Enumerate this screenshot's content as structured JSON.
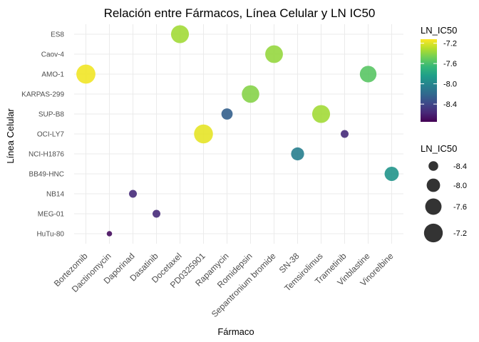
{
  "chart_data": {
    "type": "scatter",
    "title": "Relación entre Fármacos, Línea Celular y LN IC50",
    "xlabel": "Fármaco",
    "ylabel": "Línea Celular",
    "x_categories": [
      "Bortezomib",
      "Dactinomycin",
      "Daporinad",
      "Dasatinib",
      "Docetaxel",
      "PD0325901",
      "Rapamycin",
      "Romidepsin",
      "Sepantronium bromide",
      "SN-38",
      "Temsirolimus",
      "Trametinib",
      "Vinblastine",
      "Vinorelbine"
    ],
    "y_categories": [
      "HuTu-80",
      "MEG-01",
      "NB14",
      "BB49-HNC",
      "NCI-H1876",
      "OCI-LY7",
      "SUP-B8",
      "KARPAS-299",
      "AMO-1",
      "Caov-4",
      "ES8"
    ],
    "points": [
      {
        "x": "Bortezomib",
        "y": "AMO-1",
        "value": -7.15
      },
      {
        "x": "Dactinomycin",
        "y": "HuTu-80",
        "value": -8.7
      },
      {
        "x": "Daporinad",
        "y": "NB14",
        "value": -8.55
      },
      {
        "x": "Dasatinib",
        "y": "MEG-01",
        "value": -8.55
      },
      {
        "x": "Docetaxel",
        "y": "ES8",
        "value": -7.35
      },
      {
        "x": "PD0325901",
        "y": "OCI-LY7",
        "value": -7.18
      },
      {
        "x": "Rapamycin",
        "y": "SUP-B8",
        "value": -8.25
      },
      {
        "x": "Romidepsin",
        "y": "KARPAS-299",
        "value": -7.42
      },
      {
        "x": "Sepantronium bromide",
        "y": "Caov-4",
        "value": -7.38
      },
      {
        "x": "SN-38",
        "y": "NCI-H1876",
        "value": -8.05
      },
      {
        "x": "Temsirolimus",
        "y": "SUP-B8",
        "value": -7.35
      },
      {
        "x": "Trametinib",
        "y": "OCI-LY7",
        "value": -8.55
      },
      {
        "x": "Vinblastine",
        "y": "AMO-1",
        "value": -7.55
      },
      {
        "x": "Vinorelbine",
        "y": "BB49-HNC",
        "value": -7.9
      }
    ],
    "color_legend": {
      "title": "LN_IC50",
      "ticks": [
        -7.2,
        -7.6,
        -8.0,
        -8.4
      ],
      "tick_labels": [
        "-7.2",
        "-7.6",
        "-8.0",
        "-8.4"
      ],
      "range": [
        -8.75,
        -7.12
      ],
      "palette": [
        "#440154",
        "#482878",
        "#3e4989",
        "#31688e",
        "#26828e",
        "#1f9e89",
        "#35b779",
        "#6ece58",
        "#b5de2b",
        "#fde725"
      ]
    },
    "size_legend": {
      "title": "LN_IC50",
      "values": [
        -8.4,
        -8.0,
        -7.6,
        -7.2
      ],
      "labels": [
        "-8.4",
        "-8.0",
        "-7.6",
        "-7.2"
      ]
    },
    "grid": true,
    "legend_position": "right"
  }
}
